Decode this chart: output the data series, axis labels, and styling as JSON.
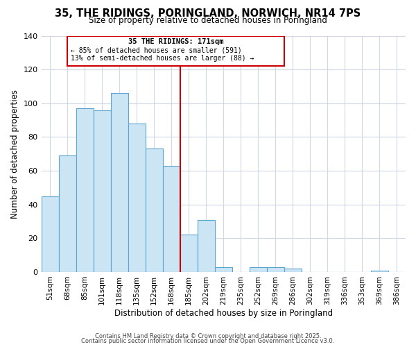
{
  "title": "35, THE RIDINGS, PORINGLAND, NORWICH, NR14 7PS",
  "subtitle": "Size of property relative to detached houses in Poringland",
  "xlabel": "Distribution of detached houses by size in Poringland",
  "ylabel": "Number of detached properties",
  "bin_labels": [
    "51sqm",
    "68sqm",
    "85sqm",
    "101sqm",
    "118sqm",
    "135sqm",
    "152sqm",
    "168sqm",
    "185sqm",
    "202sqm",
    "219sqm",
    "235sqm",
    "252sqm",
    "269sqm",
    "286sqm",
    "302sqm",
    "319sqm",
    "336sqm",
    "353sqm",
    "369sqm",
    "386sqm"
  ],
  "bar_values": [
    45,
    69,
    97,
    96,
    106,
    88,
    73,
    63,
    22,
    31,
    3,
    0,
    3,
    3,
    2,
    0,
    0,
    0,
    0,
    1,
    0
  ],
  "bar_color": "#cce5f5",
  "bar_edge_color": "#5ba3d0",
  "vline_color": "#cc0000",
  "annotation_title": "35 THE RIDINGS: 171sqm",
  "annotation_line1": "← 85% of detached houses are smaller (591)",
  "annotation_line2": "13% of semi-detached houses are larger (88) →",
  "annotation_box_color": "#cc0000",
  "ylim": [
    0,
    140
  ],
  "yticks": [
    0,
    20,
    40,
    60,
    80,
    100,
    120,
    140
  ],
  "footer1": "Contains HM Land Registry data © Crown copyright and database right 2025.",
  "footer2": "Contains public sector information licensed under the Open Government Licence v3.0.",
  "background_color": "#ffffff",
  "grid_color": "#d0d8e8"
}
